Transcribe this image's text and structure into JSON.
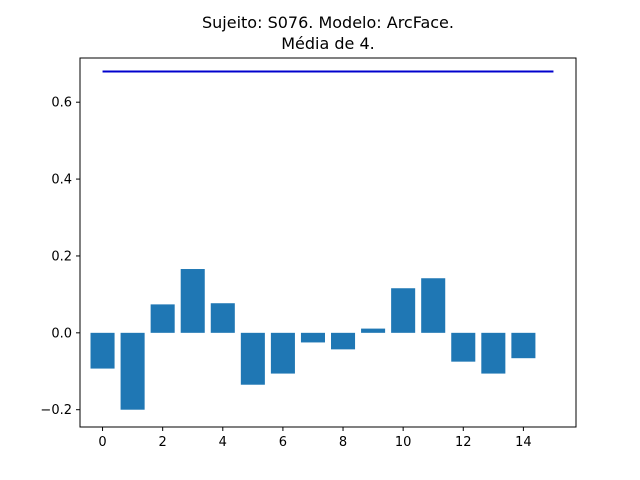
{
  "chart_data": {
    "type": "bar",
    "title_lines": [
      "Sujeito: S076. Modelo: ArcFace.",
      "Média de 4."
    ],
    "xlabel": "",
    "ylabel": "",
    "x": [
      0,
      1,
      2,
      3,
      4,
      5,
      6,
      7,
      8,
      9,
      10,
      11,
      12,
      13,
      14
    ],
    "values": [
      -0.093,
      -0.2,
      0.074,
      0.166,
      0.077,
      -0.135,
      -0.106,
      -0.025,
      -0.043,
      0.011,
      0.116,
      0.142,
      -0.075,
      -0.106,
      -0.066
    ],
    "bar_color": "#1f77b4",
    "reference_line": {
      "y": 0.68,
      "x_start": 0,
      "x_end": 15,
      "color": "#0000cd"
    },
    "xlim": [
      -0.75,
      15.75
    ],
    "ylim": [
      -0.245,
      0.715
    ],
    "xticks": [
      0,
      2,
      4,
      6,
      8,
      10,
      12,
      14
    ],
    "xtick_labels": [
      "0",
      "2",
      "4",
      "6",
      "8",
      "10",
      "12",
      "14"
    ],
    "yticks": [
      -0.2,
      0.0,
      0.2,
      0.4,
      0.6
    ],
    "ytick_labels": [
      "−0.2",
      "0.0",
      "0.2",
      "0.4",
      "0.6"
    ],
    "grid": false,
    "legend": "none"
  }
}
